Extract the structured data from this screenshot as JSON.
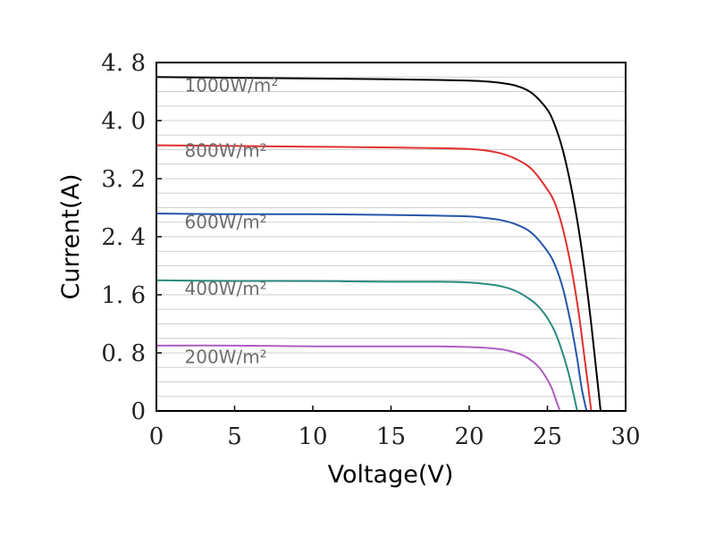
{
  "chart_data": {
    "type": "line",
    "xlabel": "Voltage(V)",
    "ylabel": "Current(A)",
    "xlim": [
      0,
      30
    ],
    "ylim": [
      0,
      4.8
    ],
    "x_ticks": [
      {
        "value": 0,
        "label": "0"
      },
      {
        "value": 5,
        "label": "5"
      },
      {
        "value": 10,
        "label": "10"
      },
      {
        "value": 15,
        "label": "15"
      },
      {
        "value": 20,
        "label": "20"
      },
      {
        "value": 25,
        "label": "25"
      },
      {
        "value": 30,
        "label": "30"
      }
    ],
    "y_ticks": [
      {
        "value": 0,
        "label": "0"
      },
      {
        "value": 0.8,
        "label": "0. 8"
      },
      {
        "value": 1.6,
        "label": "1. 6"
      },
      {
        "value": 2.4,
        "label": "2. 4"
      },
      {
        "value": 3.2,
        "label": "3. 2"
      },
      {
        "value": 4.0,
        "label": "4. 0"
      },
      {
        "value": 4.8,
        "label": "4. 8"
      }
    ],
    "grid": true,
    "series": [
      {
        "name": "1000W/m²",
        "color": "#000000",
        "label_anchor": [
          1.8,
          4.4
        ],
        "x": [
          0,
          5,
          10,
          15,
          18,
          20,
          21,
          22,
          23,
          24,
          25,
          25.5,
          26,
          26.5,
          27,
          27.4,
          27.8,
          28.1,
          28.3,
          28.4
        ],
        "y": [
          4.6,
          4.59,
          4.58,
          4.57,
          4.56,
          4.55,
          4.54,
          4.52,
          4.48,
          4.38,
          4.15,
          3.92,
          3.58,
          3.1,
          2.5,
          1.9,
          1.2,
          0.6,
          0.2,
          0
        ]
      },
      {
        "name": "800W/m²",
        "color": "#e03030",
        "label_anchor": [
          1.8,
          3.5
        ],
        "x": [
          0,
          5,
          10,
          15,
          18,
          20,
          21,
          22,
          23,
          24,
          25,
          25.5,
          26,
          26.5,
          27,
          27.3,
          27.6,
          27.8
        ],
        "y": [
          3.66,
          3.65,
          3.64,
          3.63,
          3.62,
          3.61,
          3.59,
          3.55,
          3.47,
          3.33,
          3.05,
          2.85,
          2.5,
          2.0,
          1.35,
          0.85,
          0.35,
          0
        ]
      },
      {
        "name": "600W/m²",
        "color": "#2555aa",
        "label_anchor": [
          1.8,
          2.52
        ],
        "x": [
          0,
          5,
          10,
          15,
          18,
          20,
          21,
          22,
          23,
          24,
          25,
          25.5,
          26,
          26.5,
          26.9,
          27.2,
          27.5
        ],
        "y": [
          2.72,
          2.71,
          2.71,
          2.7,
          2.69,
          2.68,
          2.66,
          2.63,
          2.57,
          2.45,
          2.2,
          2.0,
          1.68,
          1.2,
          0.72,
          0.3,
          0
        ]
      },
      {
        "name": "400W/m²",
        "color": "#2a8a80",
        "label_anchor": [
          1.8,
          1.6
        ],
        "x": [
          0,
          5,
          10,
          15,
          18,
          20,
          21,
          22,
          23,
          24,
          24.5,
          25,
          25.5,
          26,
          26.4,
          26.7,
          26.9
        ],
        "y": [
          1.8,
          1.79,
          1.79,
          1.78,
          1.78,
          1.77,
          1.75,
          1.72,
          1.65,
          1.52,
          1.42,
          1.28,
          1.08,
          0.78,
          0.48,
          0.2,
          0
        ]
      },
      {
        "name": "200W/m²",
        "color": "#b05cc0",
        "label_anchor": [
          1.8,
          0.66
        ],
        "x": [
          0,
          5,
          10,
          15,
          18,
          20,
          21,
          22,
          22.5,
          23,
          23.5,
          24,
          24.5,
          25,
          25.3,
          25.6,
          25.8
        ],
        "y": [
          0.9,
          0.9,
          0.89,
          0.89,
          0.89,
          0.88,
          0.87,
          0.85,
          0.83,
          0.8,
          0.76,
          0.69,
          0.59,
          0.43,
          0.3,
          0.12,
          0
        ]
      }
    ]
  }
}
